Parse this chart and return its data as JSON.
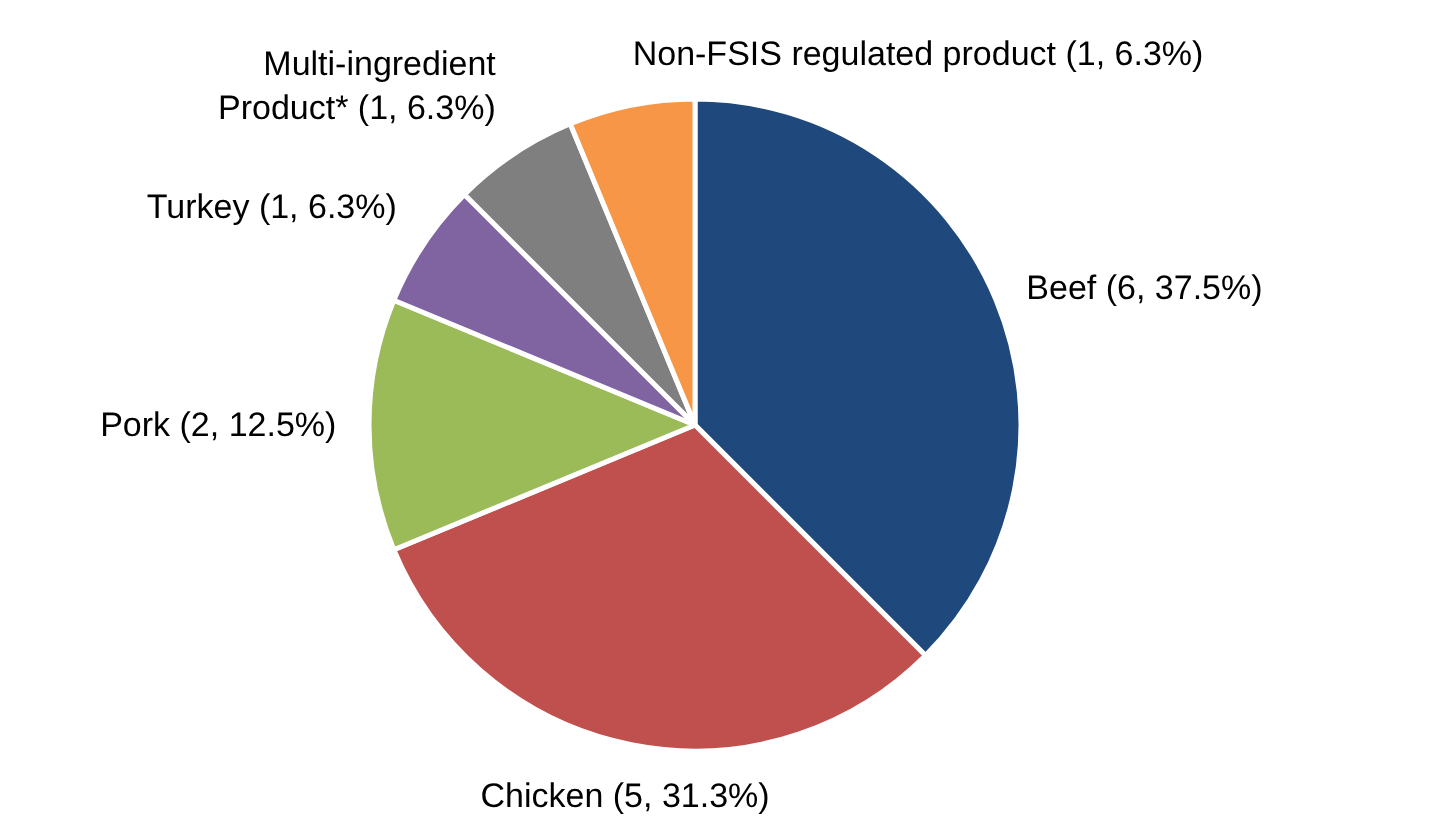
{
  "chart_data": {
    "type": "pie",
    "categories": [
      "Beef",
      "Chicken",
      "Pork",
      "Turkey",
      "Multi-ingredient\nProduct*",
      "Non-FSIS regulated product"
    ],
    "values": [
      6,
      5,
      2,
      1,
      1,
      1
    ],
    "colors": [
      "#1f497d",
      "#c0504d",
      "#9bbb59",
      "#8064a2",
      "#7f7f7f",
      "#f79646"
    ],
    "value_labels": [
      "(6, 37.5%)",
      "(5, 31.3%)",
      "(2, 12.5%)",
      "(1, 6.3%)",
      "(1, 6.3%)",
      "(1, 6.3%)"
    ]
  }
}
